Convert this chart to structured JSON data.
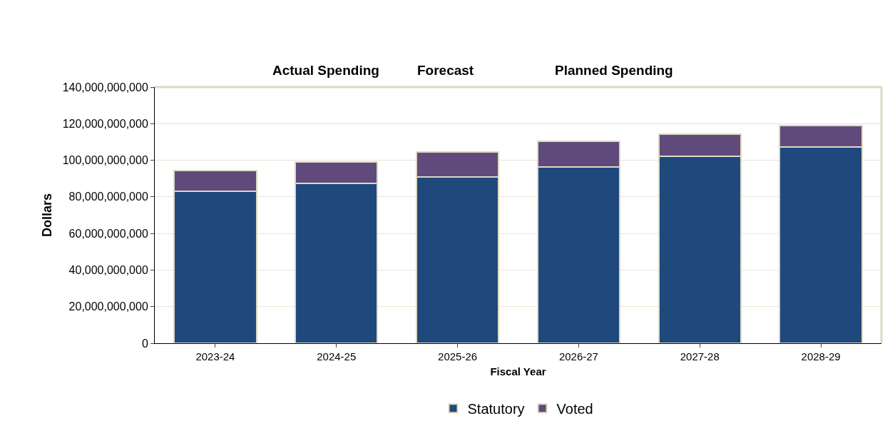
{
  "chart_data": {
    "type": "bar",
    "stacked": true,
    "xlabel": "Fiscal Year",
    "ylabel": "Dollars",
    "annotations": [
      "Actual Spending",
      "Forecast",
      "Planned Spending"
    ],
    "categories": [
      "2023-24",
      "2024-25",
      "2025-26",
      "2026-27",
      "2027-28",
      "2028-29"
    ],
    "series": [
      {
        "name": "Statutory",
        "color": "#1f497d",
        "values": [
          83000000000,
          87300000000,
          91000000000,
          96500000000,
          102000000000,
          107100000000
        ]
      },
      {
        "name": "Voted",
        "color": "#604a7b",
        "values": [
          11400000000,
          11600000000,
          13500000000,
          13700000000,
          12400000000,
          11900000000
        ]
      }
    ],
    "ylim": [
      0,
      140000000000
    ],
    "yticks": [
      {
        "value": 0,
        "label": "0"
      },
      {
        "value": 20000000000,
        "label": "20,000,000,000"
      },
      {
        "value": 40000000000,
        "label": "40,000,000,000"
      },
      {
        "value": 60000000000,
        "label": "60,000,000,000"
      },
      {
        "value": 80000000000,
        "label": "80,000,000,000"
      },
      {
        "value": 100000000000,
        "label": "100,000,000,000"
      },
      {
        "value": 120000000000,
        "label": "120,000,000,000"
      },
      {
        "value": 140000000000,
        "label": "140,000,000,000"
      }
    ],
    "grid": "y",
    "legend": "bottom"
  }
}
